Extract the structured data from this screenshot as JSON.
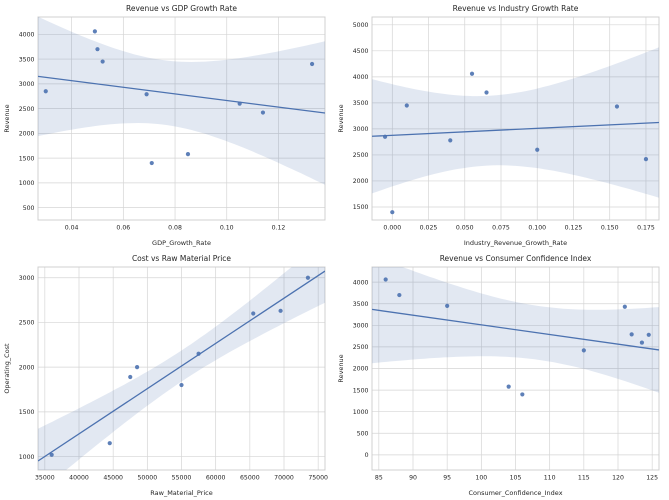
{
  "figure": {
    "background": "#ffffff",
    "point_color": "#4c72b0",
    "line_color": "#4c72b0",
    "band_color": "rgba(76,114,176,0.16)",
    "grid_color": "#d5d5d5",
    "spine_color": "#cccccc",
    "text_color": "#262626"
  },
  "chart_data": [
    {
      "type": "scatter",
      "title": "Revenue vs GDP Growth Rate",
      "xlabel": "GDP_Growth_Rate",
      "ylabel": "Revenue",
      "xlim": [
        0.027,
        0.138
      ],
      "ylim": [
        250,
        4350
      ],
      "grid": true,
      "legend": "none",
      "xticks": [
        0.04,
        0.06,
        0.08,
        0.1,
        0.12
      ],
      "xtick_labels": [
        "0.04",
        "0.06",
        "0.08",
        "0.10",
        "0.12"
      ],
      "yticks": [
        500,
        1000,
        1500,
        2000,
        2500,
        3000,
        3500,
        4000
      ],
      "ytick_labels": [
        "500",
        "1000",
        "1500",
        "2000",
        "2500",
        "3000",
        "3500",
        "4000"
      ],
      "points": [
        [
          0.03,
          2850
        ],
        [
          0.049,
          4060
        ],
        [
          0.05,
          3700
        ],
        [
          0.052,
          3450
        ],
        [
          0.069,
          2790
        ],
        [
          0.071,
          1400
        ],
        [
          0.085,
          1580
        ],
        [
          0.105,
          2600
        ],
        [
          0.114,
          2420
        ],
        [
          0.133,
          3400
        ]
      ],
      "regression": true,
      "ci": 95
    },
    {
      "type": "scatter",
      "title": "Revenue vs Industry Growth Rate",
      "xlabel": "Industry_Revenue_Growth_Rate",
      "ylabel": "Revenue",
      "xlim": [
        -0.014,
        0.184
      ],
      "ylim": [
        1250,
        5150
      ],
      "grid": true,
      "legend": "none",
      "xticks": [
        0.0,
        0.025,
        0.05,
        0.075,
        0.1,
        0.125,
        0.15,
        0.175
      ],
      "xtick_labels": [
        "0.000",
        "0.025",
        "0.050",
        "0.075",
        "0.100",
        "0.125",
        "0.150",
        "0.175"
      ],
      "yticks": [
        1500,
        2000,
        2500,
        3000,
        3500,
        4000,
        4500,
        5000
      ],
      "ytick_labels": [
        "1500",
        "2000",
        "2500",
        "3000",
        "3500",
        "4000",
        "4500",
        "5000"
      ],
      "points": [
        [
          -0.005,
          2850
        ],
        [
          0.0,
          1400
        ],
        [
          0.01,
          3450
        ],
        [
          0.04,
          2780
        ],
        [
          0.055,
          4060
        ],
        [
          0.065,
          3700
        ],
        [
          0.1,
          2600
        ],
        [
          0.155,
          3430
        ],
        [
          0.175,
          2420
        ]
      ],
      "regression": true,
      "ci": 95
    },
    {
      "type": "scatter",
      "title": "Cost vs Raw Material Price",
      "xlabel": "Raw_Material_Price",
      "ylabel": "Operating_Cost",
      "xlim": [
        34000,
        76000
      ],
      "ylim": [
        850,
        3120
      ],
      "grid": true,
      "legend": "none",
      "xticks": [
        35000,
        40000,
        45000,
        50000,
        55000,
        60000,
        65000,
        70000,
        75000
      ],
      "xtick_labels": [
        "35000",
        "40000",
        "45000",
        "50000",
        "55000",
        "60000",
        "65000",
        "70000",
        "75000"
      ],
      "yticks": [
        1000,
        1500,
        2000,
        2500,
        3000
      ],
      "ytick_labels": [
        "1000",
        "1500",
        "2000",
        "2500",
        "3000"
      ],
      "points": [
        [
          36000,
          1020
        ],
        [
          44500,
          1150
        ],
        [
          47500,
          1890
        ],
        [
          48500,
          2000
        ],
        [
          55000,
          1800
        ],
        [
          57500,
          2150
        ],
        [
          65500,
          2600
        ],
        [
          69500,
          2630
        ],
        [
          73500,
          3000
        ]
      ],
      "regression": true,
      "ci": 95
    },
    {
      "type": "scatter",
      "title": "Revenue vs Consumer Confidence Index",
      "xlabel": "Consumer_Confidence_Index",
      "ylabel": "Revenue",
      "xlim": [
        84,
        126
      ],
      "ylim": [
        -350,
        4350
      ],
      "grid": true,
      "legend": "none",
      "xticks": [
        85,
        90,
        95,
        100,
        105,
        110,
        115,
        120,
        125
      ],
      "xtick_labels": [
        "85",
        "90",
        "95",
        "100",
        "105",
        "110",
        "115",
        "120",
        "125"
      ],
      "yticks": [
        0,
        500,
        1000,
        1500,
        2000,
        2500,
        3000,
        3500,
        4000
      ],
      "ytick_labels": [
        "0",
        "500",
        "1000",
        "1500",
        "2000",
        "2500",
        "3000",
        "3500",
        "4000"
      ],
      "points": [
        [
          86,
          4060
        ],
        [
          88,
          3700
        ],
        [
          95,
          3450
        ],
        [
          104,
          1580
        ],
        [
          106,
          1400
        ],
        [
          115,
          2420
        ],
        [
          121,
          3430
        ],
        [
          122,
          2790
        ],
        [
          123.5,
          2600
        ],
        [
          124.5,
          2780
        ]
      ],
      "regression": true,
      "ci": 95
    }
  ]
}
